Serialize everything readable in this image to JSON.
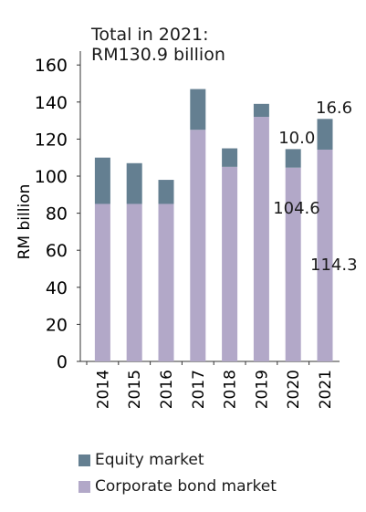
{
  "annotation": {
    "line1": "Total in 2021:",
    "line2": "RM130.9 billion"
  },
  "colors": {
    "equity": "#647f91",
    "bond": "#b2a8c8"
  },
  "chart_data": {
    "type": "bar",
    "stacked": true,
    "categories": [
      "2014",
      "2015",
      "2016",
      "2017",
      "2018",
      "2019",
      "2020",
      "2021"
    ],
    "series": [
      {
        "name": "Corporate bond market",
        "values": [
          85,
          85,
          85,
          125,
          105,
          132,
          104.6,
          114.3
        ]
      },
      {
        "name": "Equity market",
        "values": [
          25,
          22,
          13,
          22,
          10,
          7,
          10.0,
          16.6
        ]
      }
    ],
    "data_labels": [
      {
        "category": "2020",
        "series": "Equity market",
        "text": "10.0"
      },
      {
        "category": "2020",
        "series": "Corporate bond market",
        "text": "104.6"
      },
      {
        "category": "2021",
        "series": "Equity market",
        "text": "16.6"
      },
      {
        "category": "2021",
        "series": "Corporate bond market",
        "text": "114.3"
      }
    ],
    "ylabel": "RM billion",
    "xlabel": "",
    "ylim": [
      0,
      160
    ],
    "yticks": [
      "0",
      "20",
      "40",
      "60",
      "80",
      "100",
      "120",
      "140",
      "160"
    ],
    "legend": [
      "Equity market",
      "Corporate bond market"
    ],
    "legend_position": "bottom"
  }
}
